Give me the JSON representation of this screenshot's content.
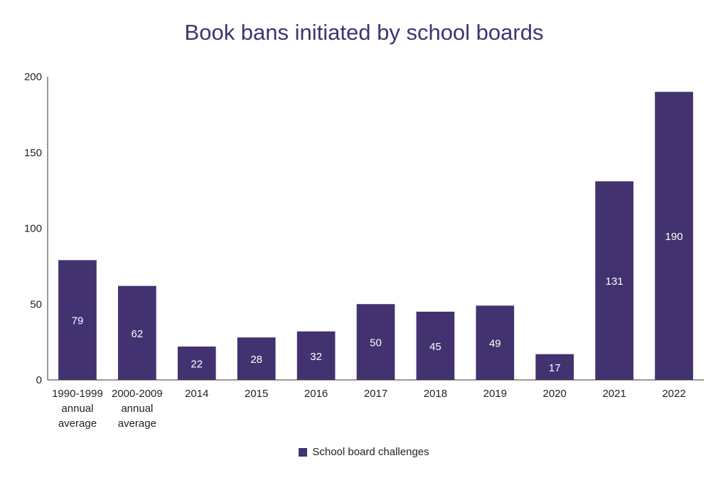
{
  "chart_data": {
    "type": "bar",
    "title": "Book bans initiated by school boards",
    "xlabel": "",
    "ylabel": "",
    "ylim": [
      0,
      200
    ],
    "yticks": [
      0,
      50,
      100,
      150,
      200
    ],
    "grid": false,
    "legend_position": "bottom-center",
    "categories": [
      [
        "1990-1999",
        "annual",
        "average"
      ],
      [
        "2000-2009",
        "annual",
        "average"
      ],
      [
        "2014"
      ],
      [
        "2015"
      ],
      [
        "2016"
      ],
      [
        "2017"
      ],
      [
        "2018"
      ],
      [
        "2019"
      ],
      [
        "2020"
      ],
      [
        "2021"
      ],
      [
        "2022"
      ]
    ],
    "series": [
      {
        "name": "School board challenges",
        "color": "#433270",
        "values": [
          79,
          62,
          22,
          28,
          32,
          50,
          45,
          49,
          17,
          131,
          190
        ]
      }
    ]
  }
}
